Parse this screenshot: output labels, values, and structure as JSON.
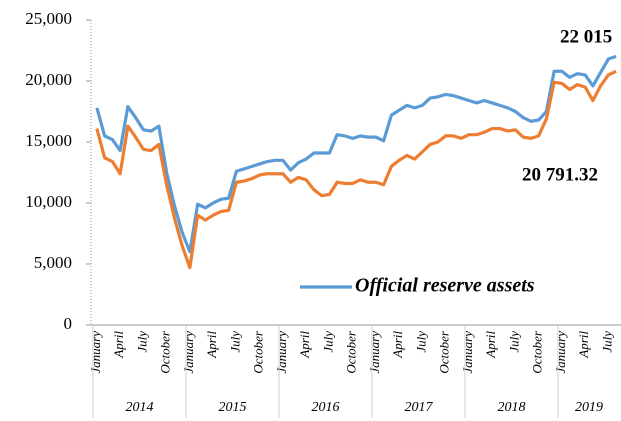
{
  "chart_data": {
    "type": "line",
    "categories": [
      "January",
      null,
      null,
      "April",
      null,
      null,
      "July",
      null,
      null,
      "October",
      null,
      null,
      "January",
      null,
      null,
      "April",
      null,
      null,
      "July",
      null,
      null,
      "October",
      null,
      null,
      "January",
      null,
      null,
      "April",
      null,
      null,
      "July",
      null,
      null,
      "October",
      null,
      null,
      "January",
      null,
      null,
      "April",
      null,
      null,
      "July",
      null,
      null,
      "October",
      null,
      null,
      "January",
      null,
      null,
      "April",
      null,
      null,
      "July",
      null,
      null,
      "October",
      null,
      null,
      "January",
      null,
      null,
      "April",
      null,
      null,
      "July",
      null
    ],
    "x_groups": [
      "2014",
      "2015",
      "2016",
      "2017",
      "2018",
      "2019"
    ],
    "series": [
      {
        "name": "Official reserve assets",
        "color": "#5b9bd5",
        "values": [
          17800,
          15500,
          15200,
          14300,
          17900,
          17000,
          16000,
          15900,
          16300,
          12500,
          9800,
          7600,
          6000,
          9900,
          9600,
          10000,
          10300,
          10400,
          12600,
          12800,
          13000,
          13200,
          13400,
          13500,
          13500,
          12700,
          13300,
          13600,
          14100,
          14100,
          14100,
          15600,
          15500,
          15300,
          15500,
          15400,
          15400,
          15100,
          17200,
          17600,
          18000,
          17800,
          18000,
          18600,
          18700,
          18900,
          18800,
          18600,
          18400,
          18200,
          18400,
          18200,
          18000,
          17800,
          17500,
          17000,
          16700,
          16800,
          17500,
          20800,
          20800,
          20300,
          20600,
          20500,
          19600,
          20700,
          21800,
          22015
        ],
        "value_labels": [
          null,
          null,
          null,
          null,
          null,
          null,
          null,
          null,
          null,
          null,
          null,
          null,
          null,
          null,
          null,
          null,
          null,
          null,
          null,
          null,
          null,
          null,
          null,
          null,
          null,
          null,
          null,
          null,
          null,
          null,
          null,
          null,
          null,
          null,
          null,
          null,
          null,
          null,
          null,
          null,
          null,
          null,
          null,
          null,
          null,
          null,
          null,
          null,
          null,
          null,
          null,
          null,
          null,
          null,
          null,
          null,
          null,
          null,
          null,
          null,
          null,
          null,
          null,
          null,
          null,
          null,
          null,
          "22 015"
        ]
      },
      {
        "color": "#ed7d31",
        "values": [
          16100,
          13700,
          13400,
          12400,
          16300,
          15400,
          14400,
          14300,
          14800,
          11500,
          8800,
          6500,
          4700,
          9000,
          8600,
          9000,
          9300,
          9400,
          11700,
          11800,
          12000,
          12300,
          12400,
          12400,
          12400,
          11700,
          12100,
          11900,
          11100,
          10600,
          10700,
          11700,
          11600,
          11600,
          11900,
          11700,
          11700,
          11500,
          13000,
          13500,
          13900,
          13600,
          14200,
          14800,
          15000,
          15500,
          15500,
          15300,
          15600,
          15600,
          15800,
          16100,
          16100,
          15900,
          16000,
          15400,
          15300,
          15500,
          16900,
          19900,
          19800,
          19300,
          19700,
          19500,
          18400,
          19600,
          20500,
          20791.32
        ],
        "value_labels": [
          null,
          null,
          null,
          null,
          null,
          null,
          null,
          null,
          null,
          null,
          null,
          null,
          null,
          null,
          null,
          null,
          null,
          null,
          null,
          null,
          null,
          null,
          null,
          null,
          null,
          null,
          null,
          null,
          null,
          null,
          null,
          null,
          null,
          null,
          null,
          null,
          null,
          null,
          null,
          null,
          null,
          null,
          null,
          null,
          null,
          null,
          null,
          null,
          null,
          null,
          null,
          null,
          null,
          null,
          null,
          null,
          null,
          null,
          null,
          null,
          null,
          null,
          null,
          null,
          null,
          null,
          null,
          "20 791.32"
        ]
      }
    ],
    "ylim": [
      0,
      25000
    ],
    "yticks": [
      0,
      {
        "value": 5000,
        "label": "5,000"
      },
      {
        "value": 10000,
        "label": "10,000"
      },
      {
        "value": 15000,
        "label": "15,000"
      },
      {
        "value": 20000,
        "label": "20,000"
      },
      {
        "value": 25000,
        "label": "25,000"
      }
    ],
    "legend": "bottom-right"
  }
}
